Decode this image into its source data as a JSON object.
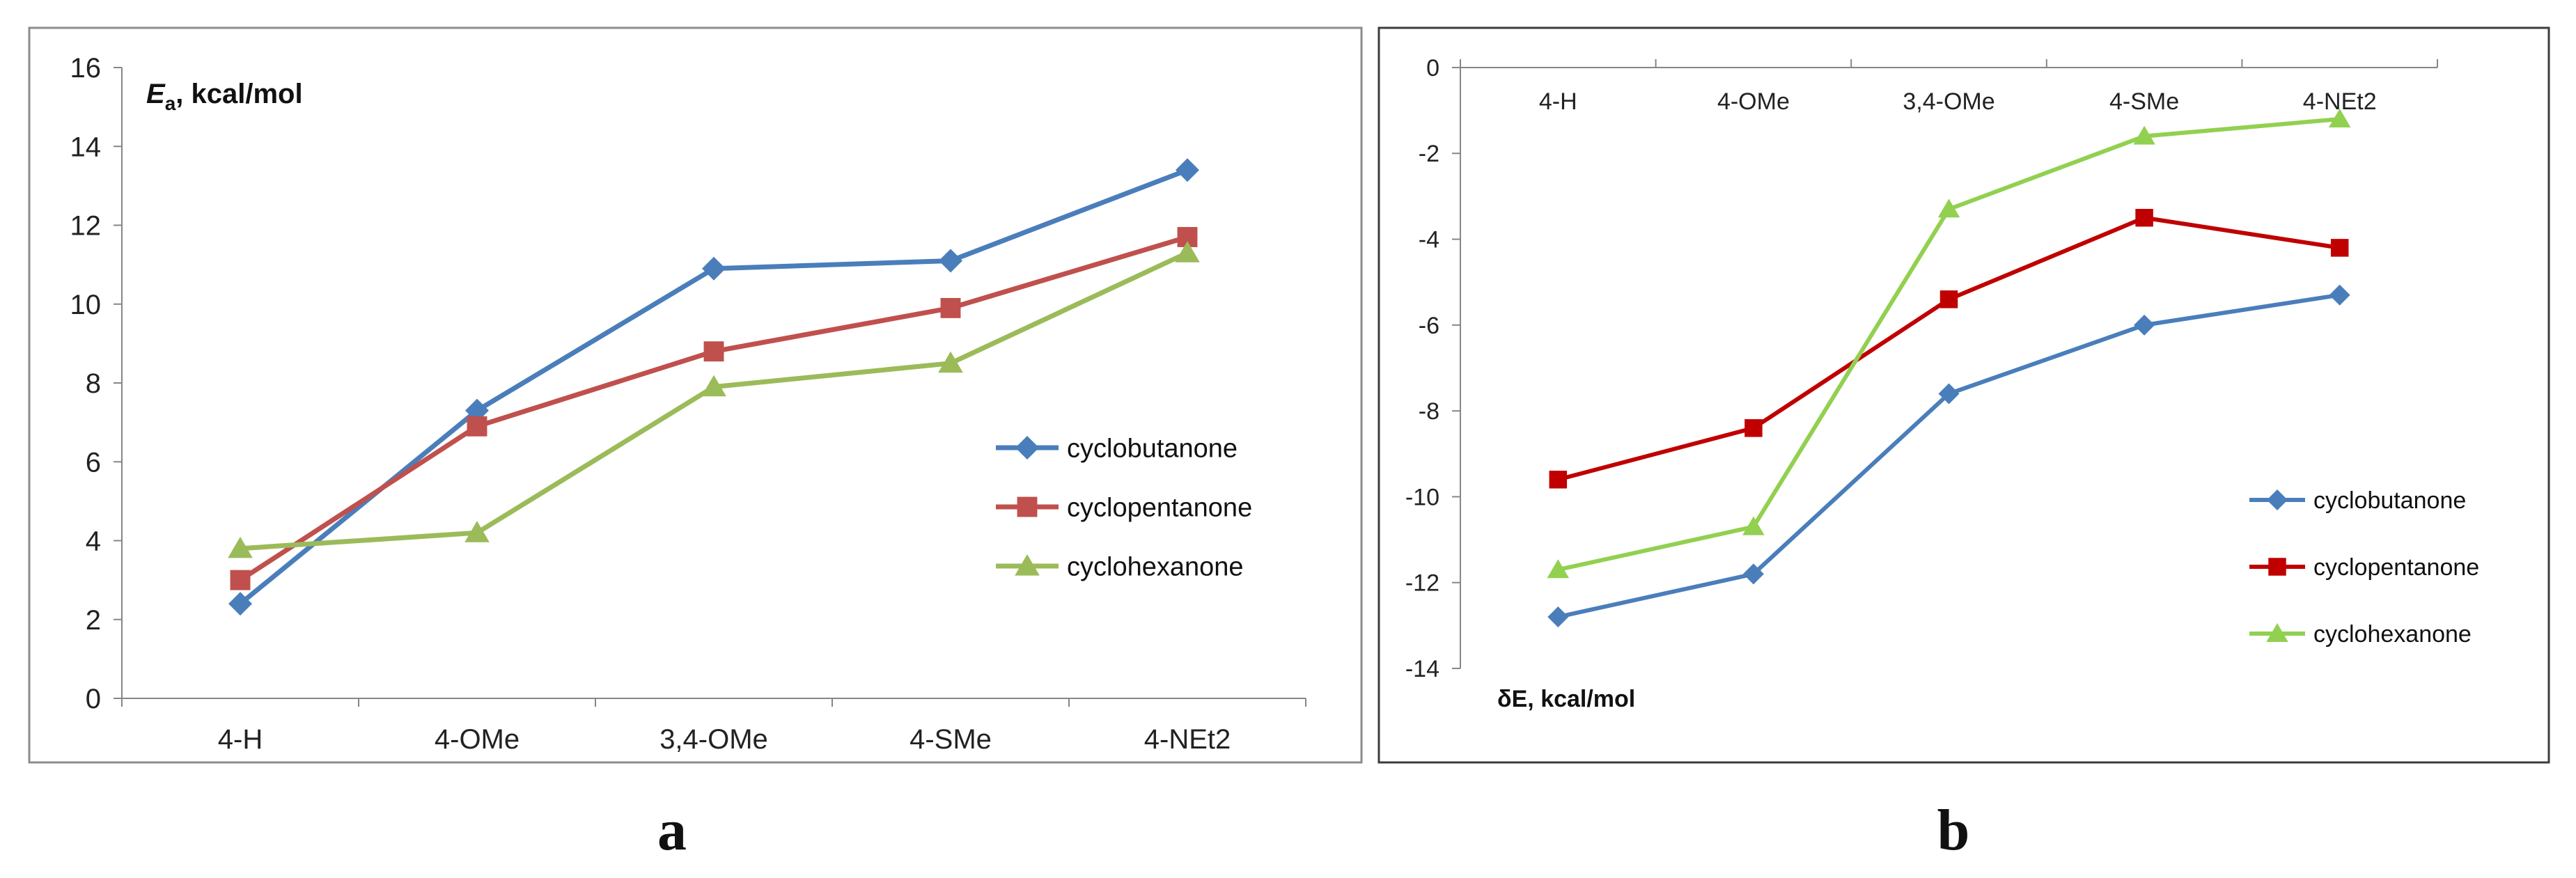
{
  "chart_data": [
    {
      "id": "a",
      "type": "line",
      "panel_label": "a",
      "ylabel_main": "E",
      "ylabel_sub": "a",
      "ylabel_rest": ", kcal/mol",
      "categories": [
        "4-H",
        "4-OMe",
        "3,4-OMe",
        "4-SMe",
        "4-NEt2"
      ],
      "ylim": [
        0,
        16
      ],
      "yticks": [
        0,
        2,
        4,
        6,
        8,
        10,
        12,
        14,
        16
      ],
      "grid": false,
      "legend_position": "right",
      "series": [
        {
          "name": "cyclobutanone",
          "color": "#4a7ebb",
          "marker": "diamond",
          "values": [
            2.4,
            7.3,
            10.9,
            11.1,
            13.4
          ]
        },
        {
          "name": "cyclopentanone",
          "color": "#c0504d",
          "marker": "square",
          "values": [
            3.0,
            6.9,
            8.8,
            9.9,
            11.7
          ]
        },
        {
          "name": "cyclohexanone",
          "color": "#9bbb59",
          "marker": "triangle",
          "values": [
            3.8,
            4.2,
            7.9,
            8.5,
            11.3
          ]
        }
      ]
    },
    {
      "id": "b",
      "type": "line",
      "panel_label": "b",
      "ylabel": "δE, kcal/mol",
      "categories": [
        "4-H",
        "4-OMe",
        "3,4-OMe",
        "4-SMe",
        "4-NEt2"
      ],
      "ylim": [
        -14,
        0
      ],
      "yticks": [
        0,
        -2,
        -4,
        -6,
        -8,
        -10,
        -12,
        -14
      ],
      "grid": false,
      "legend_position": "right",
      "series": [
        {
          "name": "cyclobutanone",
          "color": "#4a7ebb",
          "marker": "diamond",
          "values": [
            -12.8,
            -11.8,
            -7.6,
            -6.0,
            -5.3
          ]
        },
        {
          "name": "cyclopentanone",
          "color": "#c00000",
          "marker": "square",
          "values": [
            -9.6,
            -8.4,
            -5.4,
            -3.5,
            -4.2
          ]
        },
        {
          "name": "cyclohexanone",
          "color": "#92d050",
          "marker": "triangle",
          "values": [
            -11.7,
            -10.7,
            -3.3,
            -1.6,
            -1.2
          ]
        }
      ]
    }
  ]
}
